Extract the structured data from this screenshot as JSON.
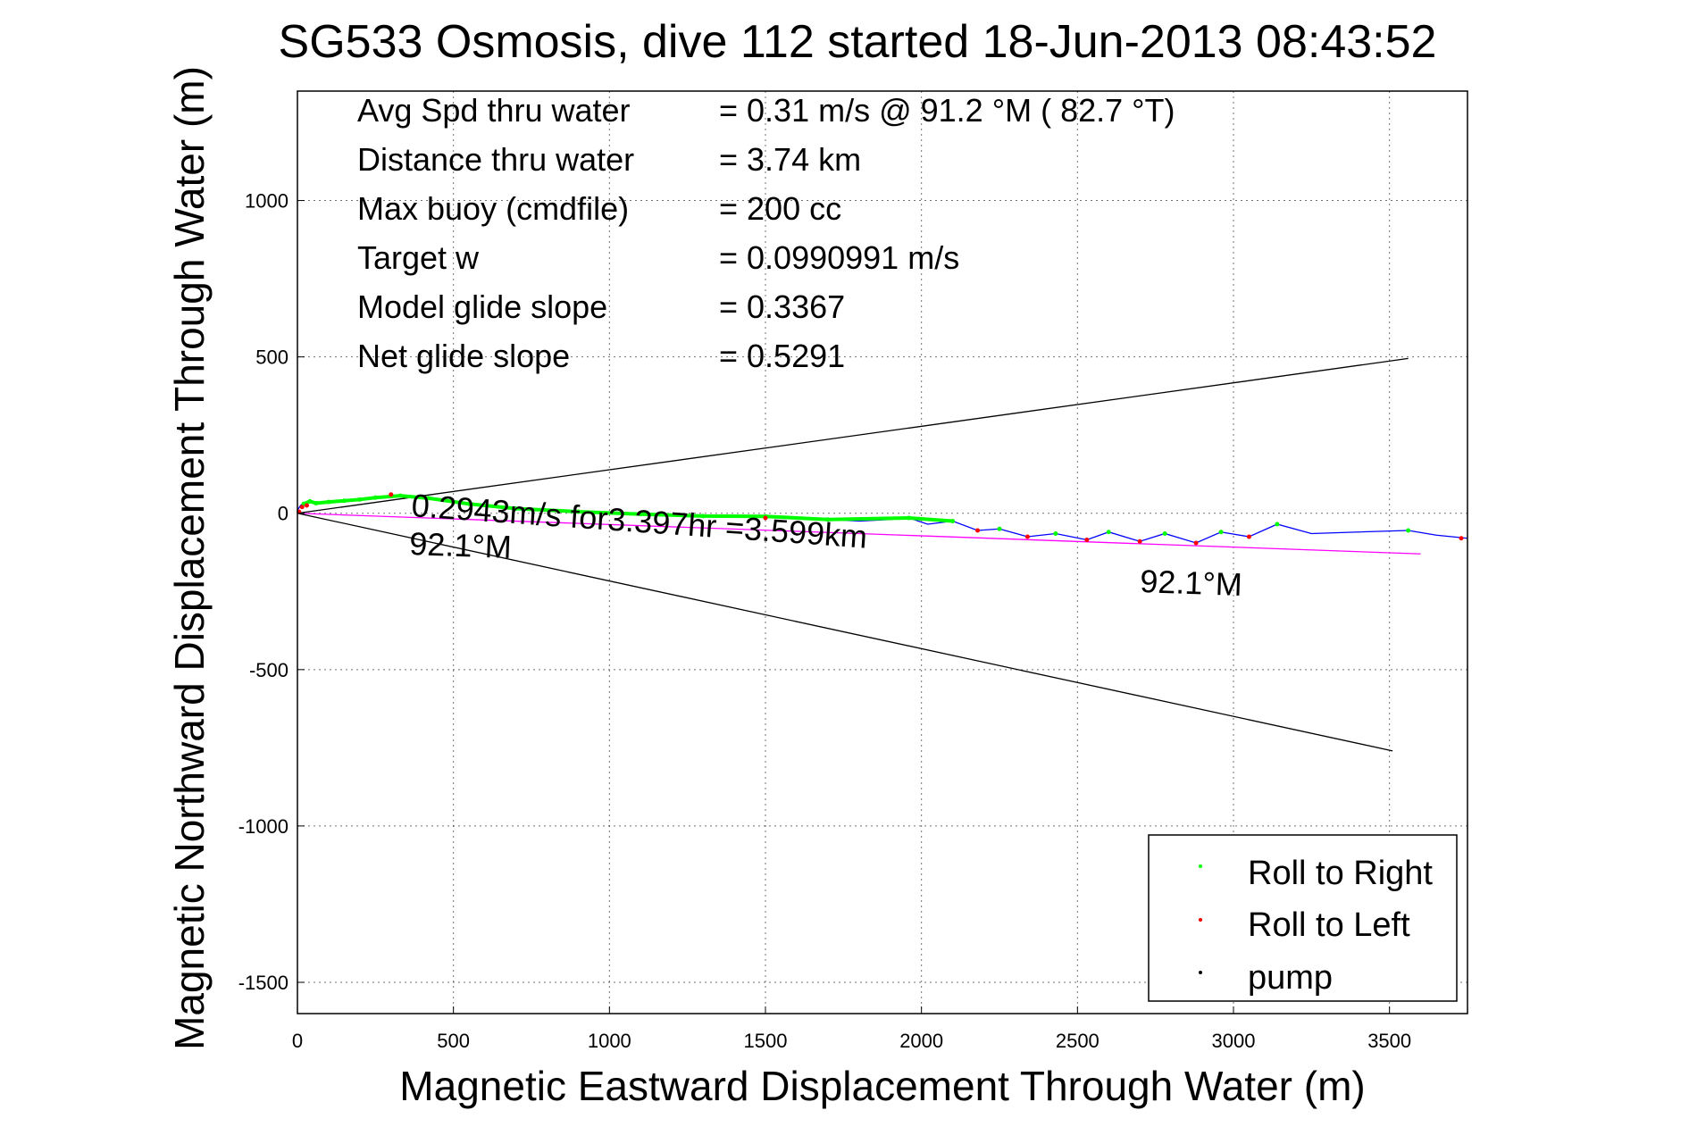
{
  "chart_data": {
    "type": "line",
    "title": "SG533 Osmosis, dive 112 started 18-Jun-2013 08:43:52",
    "xlabel": "Magnetic Eastward Displacement Through Water (m)",
    "ylabel": "Magnetic Northward Displacement Through Water (m)",
    "xlim": [
      0,
      3750
    ],
    "ylim": [
      -1600,
      1350
    ],
    "xticks": [
      0,
      500,
      1000,
      1500,
      2000,
      2500,
      3000,
      3500
    ],
    "yticks": [
      -1500,
      -1000,
      -500,
      0,
      500,
      1000
    ],
    "grid": true,
    "stats": [
      {
        "label": "Avg Spd thru water",
        "value": "=  0.31 m/s @  91.2 °M ( 82.7 °T)"
      },
      {
        "label": "Distance thru water",
        "value": "=  3.74 km"
      },
      {
        "label": "Max buoy (cmdfile)",
        "value": "= 200 cc"
      },
      {
        "label": "Target w",
        "value": "= 0.0990991 m/s"
      },
      {
        "label": "Model glide slope",
        "value": "= 0.3367"
      },
      {
        "label": "Net glide slope",
        "value": "= 0.5291"
      }
    ],
    "annotations": {
      "speed": "0.2943m/s for3.397hr =3.599km",
      "heading_start": "92.1°M",
      "heading_end": "92.1°M"
    },
    "track": {
      "x": [
        0,
        10,
        25,
        45,
        65,
        100,
        150,
        200,
        250,
        300,
        350,
        400,
        500,
        600,
        700,
        800,
        900,
        1000,
        1100,
        1200,
        1300,
        1400,
        1500,
        1600,
        1700,
        1800,
        1900,
        1960,
        2020,
        2100,
        2180,
        2250,
        2340,
        2430,
        2530,
        2600,
        2700,
        2780,
        2880,
        2960,
        3050,
        3140,
        3250,
        3400,
        3560,
        3650,
        3750
      ],
      "y": [
        10,
        25,
        35,
        40,
        30,
        35,
        40,
        45,
        50,
        58,
        55,
        50,
        35,
        25,
        15,
        10,
        5,
        0,
        -5,
        -8,
        -10,
        -8,
        -12,
        -15,
        -20,
        -25,
        -20,
        -15,
        -35,
        -25,
        -55,
        -50,
        -75,
        -65,
        -85,
        -60,
        -90,
        -65,
        -95,
        -60,
        -75,
        -35,
        -65,
        -60,
        -55,
        -70,
        -80
      ]
    },
    "roll_right_points": {
      "x": [
        20,
        40,
        60,
        100,
        150,
        200,
        250,
        330,
        420,
        550,
        700,
        900,
        1100,
        1300,
        1500,
        1700,
        1960,
        2100,
        2250,
        2430,
        2600,
        2780,
        2960,
        3140,
        3560
      ],
      "y": [
        30,
        38,
        32,
        36,
        40,
        44,
        50,
        56,
        48,
        30,
        15,
        5,
        -3,
        -9,
        -10,
        -20,
        -15,
        -25,
        -50,
        -65,
        -60,
        -65,
        -60,
        -35,
        -55
      ]
    },
    "roll_left_points": {
      "x": [
        5,
        15,
        30,
        300,
        1500,
        2180,
        2340,
        2530,
        2700,
        2880,
        3050,
        3730
      ],
      "y": [
        5,
        20,
        25,
        60,
        -15,
        -55,
        -75,
        -85,
        -90,
        -95,
        -75,
        -80
      ]
    },
    "reference_lines": [
      {
        "name": "heading line",
        "x": [
          0,
          3600
        ],
        "y": [
          0,
          -130
        ],
        "color": "#ff00ff"
      },
      {
        "name": "upper bound",
        "x": [
          0,
          3560
        ],
        "y": [
          0,
          495
        ],
        "color": "#000000"
      },
      {
        "name": "lower bound",
        "x": [
          0,
          3510
        ],
        "y": [
          0,
          -760
        ],
        "color": "#000000"
      }
    ],
    "series_colors": {
      "track": "#0000ff",
      "roll_right": "#00ff00",
      "roll_left": "#ff0000",
      "pump": "#000000"
    },
    "legend": {
      "placement": "bottom-right",
      "entries": [
        "Roll to Right",
        "Roll to Left",
        "pump"
      ]
    }
  }
}
